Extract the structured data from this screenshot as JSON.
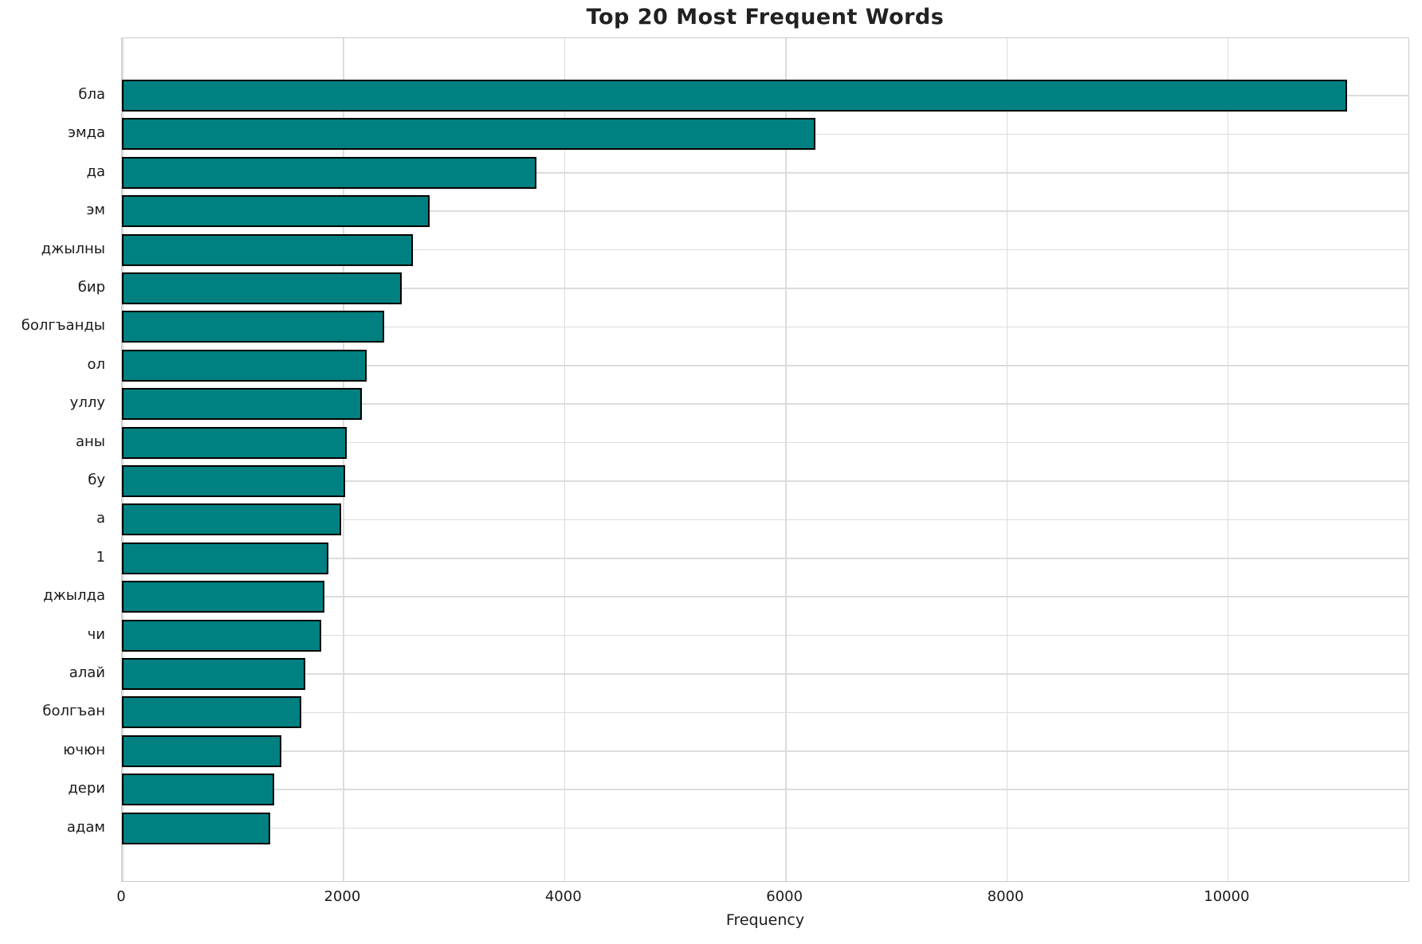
{
  "chart_data": {
    "type": "bar",
    "orientation": "horizontal",
    "title": "Top 20 Most Frequent Words",
    "xlabel": "Frequency",
    "ylabel": "",
    "categories": [
      "бла",
      "эмда",
      "да",
      "эм",
      "джылны",
      "бир",
      "болгъанды",
      "ол",
      "уллу",
      "аны",
      "бу",
      "а",
      "1",
      "джылда",
      "чи",
      "алай",
      "болгъан",
      "ючюн",
      "дери",
      "адам"
    ],
    "values": [
      11080,
      6270,
      3750,
      2780,
      2630,
      2530,
      2370,
      2210,
      2170,
      2030,
      2020,
      1980,
      1870,
      1830,
      1800,
      1660,
      1620,
      1440,
      1380,
      1340
    ],
    "xticks": [
      0,
      2000,
      4000,
      6000,
      8000,
      10000
    ],
    "xlim": [
      0,
      11630
    ],
    "grid": true,
    "legend": false,
    "bar_color": "#008080",
    "bar_edge_color": "#000000",
    "grid_color": "#dcdcdc"
  }
}
